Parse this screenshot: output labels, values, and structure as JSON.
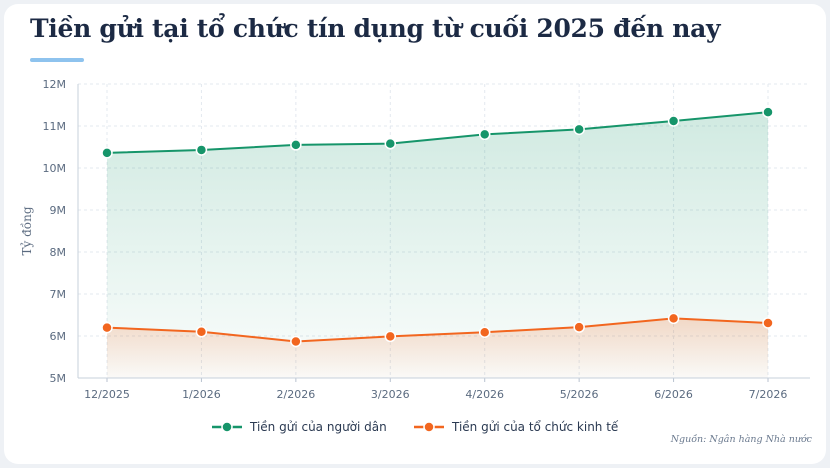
{
  "title": "Tiền gửi tại tổ chức tín dụng từ cuối 2025 đến nay",
  "source": "Nguồn: Ngân hàng Nhà nước",
  "colors": {
    "series_people": "#16956a",
    "series_econ": "#f2661f",
    "underline": "#8ec3ee"
  },
  "chart_data": {
    "type": "area",
    "categories": [
      "12/2025",
      "1/2026",
      "2/2026",
      "3/2026",
      "4/2026",
      "5/2026",
      "6/2026",
      "7/2026"
    ],
    "ylabel": "Tỷ đồng",
    "xlabel": "",
    "ylim": [
      5000000,
      12000000
    ],
    "yticks": [
      5000000,
      6000000,
      7000000,
      8000000,
      9000000,
      10000000,
      11000000,
      12000000
    ],
    "ytick_labels": [
      "5M",
      "6M",
      "7M",
      "8M",
      "9M",
      "10M",
      "11M",
      "12M"
    ],
    "grid": true,
    "legend_position": "bottom",
    "series": [
      {
        "name": "Tiền gửi của người dân",
        "values": [
          10360000,
          10430000,
          10550000,
          10580000,
          10800000,
          10920000,
          11120000,
          11330000
        ]
      },
      {
        "name": "Tiền gửi của tổ chức kinh tế",
        "values": [
          6200000,
          6100000,
          5870000,
          5990000,
          6090000,
          6210000,
          6420000,
          6310000
        ]
      }
    ]
  }
}
